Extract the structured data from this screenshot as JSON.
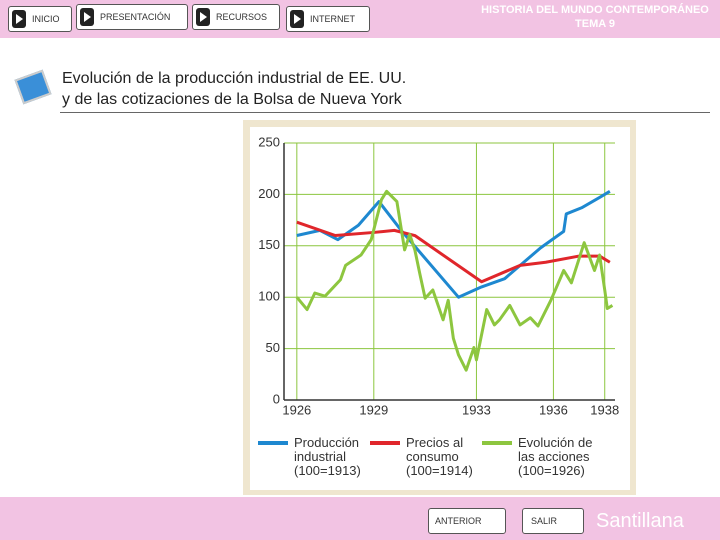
{
  "nav": [
    "INICIO",
    "PRESENTACIÓN",
    "RECURSOS",
    "INTERNET"
  ],
  "header_title": "HISTORIA DEL MUNDO CONTEMPORÁNEO\nTEMA 9",
  "heading": "Evolución de la producción industrial de EE. UU.\ny de las cotizaciones de la Bolsa de Nueva York",
  "footer": {
    "buttons": [
      "ANTERIOR",
      "SALIR"
    ],
    "brand": "Santillana"
  },
  "chart_data": {
    "type": "line",
    "xlim": [
      1925.5,
      1938.4
    ],
    "xticks": [
      1926,
      1929,
      1933,
      1936,
      1938
    ],
    "ylim": [
      0,
      250
    ],
    "yticks": [
      0,
      50,
      100,
      150,
      200,
      250
    ],
    "grid": true,
    "series": [
      {
        "name": "Producción\nindustrial\n(100=1913)",
        "color": "#1e88d0",
        "x": [
          1926,
          1926.9,
          1927.6,
          1928.4,
          1929.2,
          1930.1,
          1932.3,
          1933.2,
          1934.1,
          1935.5,
          1936.4,
          1936.5,
          1937.1,
          1937.8,
          1938.2
        ],
        "values": [
          160,
          165,
          156,
          170,
          193,
          164,
          100,
          110,
          118,
          148,
          164,
          181,
          187,
          197,
          203
        ]
      },
      {
        "name": "Precios al\nconsumo\n(100=1914)",
        "color": "#e0262b",
        "x": [
          1926,
          1927.5,
          1929,
          1929.8,
          1930.6,
          1933.2,
          1934.7,
          1935.7,
          1937,
          1937.8,
          1938.2
        ],
        "values": [
          173,
          160,
          163,
          165,
          160,
          115,
          131,
          134,
          140,
          140,
          134
        ]
      },
      {
        "name": "Evolución de\nlas acciones\n(100=1926)",
        "color": "#8dc63f",
        "x": [
          1926,
          1926.4,
          1926.7,
          1927.1,
          1927.7,
          1927.9,
          1928.5,
          1928.9,
          1929.3,
          1929.5,
          1929.9,
          1930.2,
          1930.4,
          1930.6,
          1930.8,
          1931,
          1931.3,
          1931.7,
          1931.9,
          1932.1,
          1932.3,
          1932.6,
          1932.9,
          1933,
          1933.4,
          1933.7,
          1933.9,
          1934.3,
          1934.7,
          1935.1,
          1935.4,
          1935.9,
          1936.4,
          1936.7,
          1937.2,
          1937.6,
          1937.8,
          1938,
          1938.1,
          1938.3
        ],
        "values": [
          100,
          88,
          104,
          101,
          117,
          131,
          141,
          156,
          195,
          203,
          193,
          146,
          161,
          146,
          122,
          99,
          107,
          78,
          97,
          60,
          44,
          29,
          51,
          39,
          88,
          73,
          78,
          92,
          73,
          80,
          72,
          97,
          126,
          114,
          153,
          126,
          141,
          107,
          89,
          92
        ]
      }
    ]
  }
}
